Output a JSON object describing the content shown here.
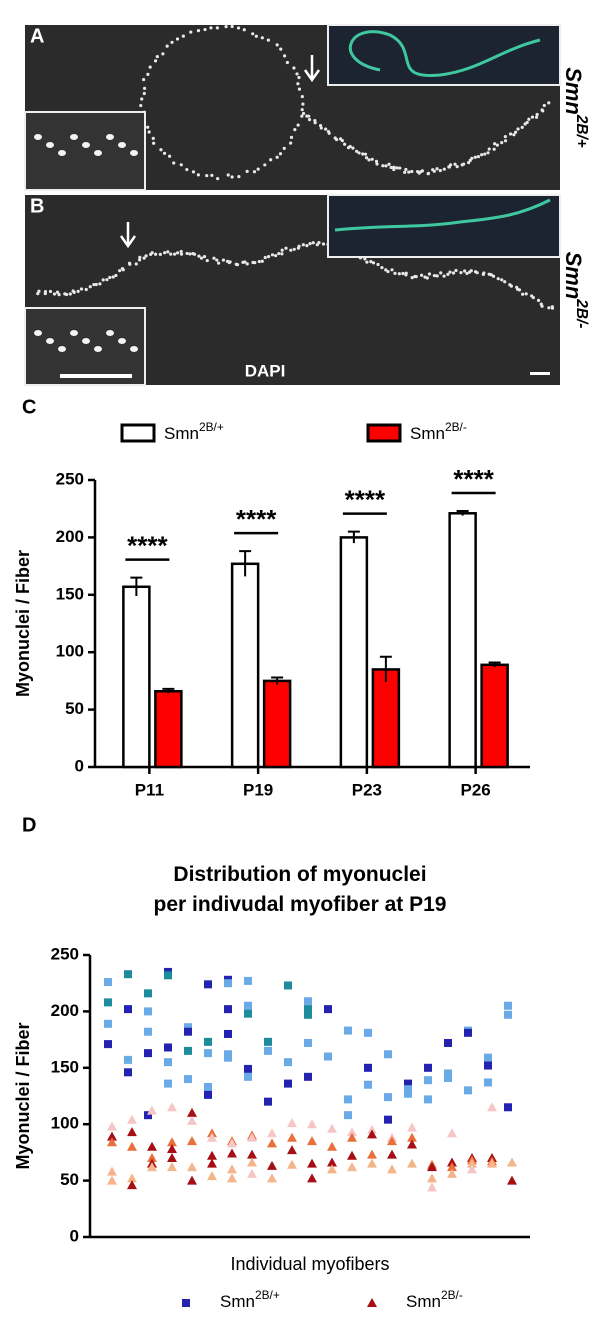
{
  "figure": {
    "panels": [
      {
        "label": "A",
        "genotype": "Smn2B/+"
      },
      {
        "label": "B",
        "genotype": "Smn2B/-",
        "stain": "DAPI"
      }
    ]
  },
  "chart_data": [
    {
      "type": "bar",
      "panel": "C",
      "ylabel": "Myonuclei / Fiber",
      "categories": [
        "P11",
        "P19",
        "P23",
        "P26"
      ],
      "series": [
        {
          "name": "Smn2B/+",
          "color": "#ffffff",
          "edge": "#000000",
          "values": [
            157,
            177,
            200,
            221
          ],
          "errors": [
            8,
            11,
            5,
            2
          ]
        },
        {
          "name": "Smn2B/-",
          "color": "#ff0000",
          "edge": "#000000",
          "values": [
            66,
            75,
            85,
            89
          ],
          "errors": [
            2,
            3,
            11,
            2
          ]
        }
      ],
      "annotations": [
        "****",
        "****",
        "****",
        "****"
      ],
      "ylim": [
        0,
        250
      ],
      "yticks": [
        0,
        50,
        100,
        150,
        200,
        250
      ]
    },
    {
      "type": "scatter",
      "panel": "D",
      "title": "Distribution of myonuclei\nper indivudal myofiber at P19",
      "xlabel": "Individual myofibers",
      "ylabel": "Myonuclei / Fiber",
      "xlim": [
        0,
        22
      ],
      "ylim": [
        0,
        250
      ],
      "yticks": [
        0,
        50,
        100,
        150,
        200,
        250
      ],
      "series": [
        {
          "name": "Smn2B/+",
          "marker": "square",
          "color": "#2323b0",
          "x": [
            1,
            1,
            1,
            1,
            2,
            2,
            2,
            2,
            3,
            3,
            3,
            3,
            3,
            4,
            4,
            4,
            4,
            4,
            5,
            5,
            5,
            5,
            6,
            6,
            6,
            6,
            6,
            7,
            7,
            7,
            7,
            7,
            7,
            8,
            8,
            8,
            8,
            8,
            9,
            9,
            9,
            10,
            10,
            10,
            11,
            11,
            11,
            11,
            11,
            12,
            12,
            13,
            13,
            13,
            14,
            14,
            14,
            15,
            15,
            15,
            16,
            16,
            16,
            17,
            17,
            17,
            18,
            18,
            18,
            19,
            19,
            19,
            20,
            20,
            20,
            21,
            21,
            21
          ],
          "values": [
            226,
            208,
            189,
            171,
            233,
            202,
            157,
            146,
            216,
            200,
            182,
            163,
            108,
            235,
            232,
            168,
            155,
            136,
            186,
            182,
            165,
            140,
            224,
            173,
            163,
            133,
            126,
            228,
            225,
            202,
            180,
            162,
            159,
            227,
            205,
            198,
            149,
            142,
            173,
            165,
            120,
            223,
            155,
            136,
            209,
            202,
            197,
            172,
            142,
            202,
            160,
            183,
            122,
            108,
            181,
            150,
            135,
            162,
            124,
            104,
            136,
            131,
            127,
            150,
            139,
            122,
            172,
            145,
            141,
            183,
            181,
            130,
            159,
            152,
            137,
            205,
            197,
            115
          ],
          "colors": [
            "#6aaae6",
            "#1e8c9c",
            "#6aaae6",
            "#2323b0",
            "#1e8c9c",
            "#2323b0",
            "#6aaae6",
            "#2323b0",
            "#1e8c9c",
            "#6aaae6",
            "#6aaae6",
            "#2323b0",
            "#2323b0",
            "#2323b0",
            "#1e8c9c",
            "#2323b0",
            "#6aaae6",
            "#6aaae6",
            "#6aaae6",
            "#2323b0",
            "#1e8c9c",
            "#6aaae6",
            "#2323b0",
            "#1e8c9c",
            "#6aaae6",
            "#6aaae6",
            "#2323b0",
            "#2323b0",
            "#6aaae6",
            "#2323b0",
            "#2323b0",
            "#6aaae6",
            "#6aaae6",
            "#6aaae6",
            "#6aaae6",
            "#1e8c9c",
            "#2323b0",
            "#6aaae6",
            "#1e8c9c",
            "#6aaae6",
            "#2323b0",
            "#1e8c9c",
            "#6aaae6",
            "#2323b0",
            "#6aaae6",
            "#1e8c9c",
            "#1e8c9c",
            "#6aaae6",
            "#2323b0",
            "#2323b0",
            "#6aaae6",
            "#6aaae6",
            "#6aaae6",
            "#6aaae6",
            "#6aaae6",
            "#2323b0",
            "#6aaae6",
            "#6aaae6",
            "#6aaae6",
            "#2323b0",
            "#2323b0",
            "#6aaae6",
            "#6aaae6",
            "#2323b0",
            "#6aaae6",
            "#6aaae6",
            "#2323b0",
            "#6aaae6",
            "#6aaae6",
            "#6aaae6",
            "#2323b0",
            "#6aaae6",
            "#6aaae6",
            "#2323b0",
            "#6aaae6",
            "#6aaae6",
            "#6aaae6",
            "#2323b0"
          ]
        },
        {
          "name": "Smn2B/-",
          "marker": "triangle",
          "color": "#a50f15",
          "x": [
            1,
            1,
            1,
            1,
            1,
            2,
            2,
            2,
            2,
            2,
            3,
            3,
            3,
            3,
            3,
            4,
            4,
            4,
            4,
            4,
            5,
            5,
            5,
            5,
            5,
            6,
            6,
            6,
            6,
            6,
            7,
            7,
            7,
            7,
            7,
            8,
            8,
            8,
            8,
            8,
            9,
            9,
            9,
            9,
            10,
            10,
            10,
            10,
            11,
            11,
            11,
            11,
            12,
            12,
            12,
            12,
            13,
            13,
            13,
            13,
            14,
            14,
            14,
            14,
            15,
            15,
            15,
            15,
            16,
            16,
            16,
            16,
            17,
            17,
            17,
            17,
            18,
            18,
            18,
            18,
            19,
            19,
            19,
            19,
            20,
            20,
            20,
            20,
            21,
            21
          ],
          "values": [
            98,
            89,
            84,
            58,
            50,
            104,
            93,
            80,
            52,
            46,
            112,
            80,
            70,
            65,
            62,
            115,
            84,
            78,
            70,
            62,
            110,
            103,
            85,
            62,
            50,
            92,
            88,
            72,
            65,
            54,
            85,
            83,
            74,
            60,
            52,
            90,
            88,
            73,
            66,
            56,
            92,
            83,
            63,
            52,
            101,
            88,
            77,
            64,
            100,
            85,
            65,
            52,
            96,
            80,
            66,
            60,
            93,
            88,
            72,
            62,
            95,
            91,
            73,
            65,
            88,
            85,
            73,
            60,
            97,
            88,
            82,
            65,
            64,
            62,
            52,
            44,
            92,
            66,
            62,
            56,
            70,
            68,
            65,
            60,
            115,
            70,
            67,
            65,
            66,
            50
          ],
          "colors": [
            "#f6c6c6",
            "#a50f15",
            "#e8703a",
            "#f5b48a",
            "#f5b48a",
            "#f6c6c6",
            "#a50f15",
            "#e8703a",
            "#f5b48a",
            "#a50f15",
            "#f6c6c6",
            "#a50f15",
            "#e8703a",
            "#a50f15",
            "#f5b48a",
            "#f6c6c6",
            "#e8703a",
            "#a50f15",
            "#a50f15",
            "#f5b48a",
            "#a50f15",
            "#f6c6c6",
            "#e8703a",
            "#f5b48a",
            "#a50f15",
            "#e8703a",
            "#f6c6c6",
            "#a50f15",
            "#a50f15",
            "#f5b48a",
            "#e8703a",
            "#f6c6c6",
            "#a50f15",
            "#f5b48a",
            "#f5b48a",
            "#e8703a",
            "#f6c6c6",
            "#a50f15",
            "#f5b48a",
            "#f6c6c6",
            "#f6c6c6",
            "#e8703a",
            "#a50f15",
            "#f5b48a",
            "#f6c6c6",
            "#e8703a",
            "#a50f15",
            "#f5b48a",
            "#f6c6c6",
            "#e8703a",
            "#a50f15",
            "#a50f15",
            "#f6c6c6",
            "#e8703a",
            "#a50f15",
            "#f5b48a",
            "#f6c6c6",
            "#e8703a",
            "#a50f15",
            "#f5b48a",
            "#f6c6c6",
            "#a50f15",
            "#e8703a",
            "#f5b48a",
            "#f6c6c6",
            "#e8703a",
            "#a50f15",
            "#f5b48a",
            "#f6c6c6",
            "#e8703a",
            "#a50f15",
            "#f5b48a",
            "#e8703a",
            "#a50f15",
            "#f5b48a",
            "#f6c6c6",
            "#f6c6c6",
            "#a50f15",
            "#e8703a",
            "#f5b48a",
            "#a50f15",
            "#e8703a",
            "#f5b48a",
            "#f6c6c6",
            "#f6c6c6",
            "#a50f15",
            "#e8703a",
            "#f5b48a",
            "#f5b48a",
            "#a50f15"
          ]
        }
      ]
    }
  ]
}
